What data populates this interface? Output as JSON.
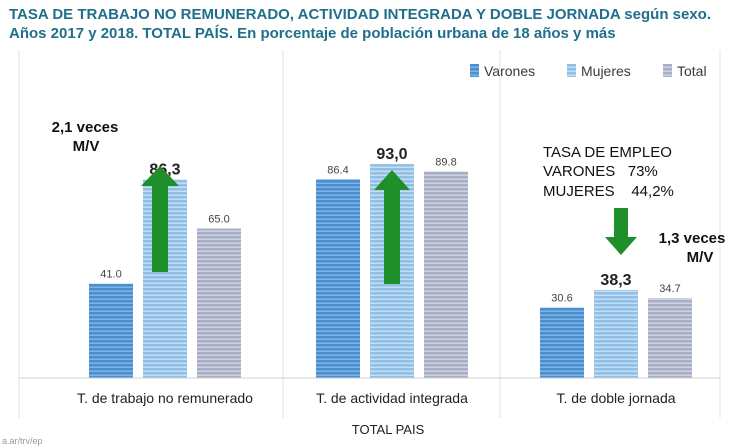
{
  "title": {
    "line1": "TASA DE TRABAJO NO REMUNERADO, ACTIVIDAD INTEGRADA Y DOBLE JORNADA según sexo.",
    "line2": "Años 2017 y 2018. TOTAL PAÍS. En porcentaje de población urbana de 18 años y más"
  },
  "colors": {
    "varones": "#4a8fd0",
    "mujeres": "#8fbfe6",
    "total": "#a7aec6",
    "arrow": "#1e8f2a",
    "title": "#1f6f8b"
  },
  "chart_data": {
    "type": "bar",
    "categories": [
      "T. de trabajo no remunerado",
      "T. de actividad integrada",
      "T. de doble jornada"
    ],
    "series": [
      {
        "name": "Varones",
        "values": [
          41.0,
          86.4,
          30.6
        ],
        "labels": [
          "41.0",
          "86.4",
          "30.6"
        ]
      },
      {
        "name": "Mujeres",
        "values": [
          86.3,
          93.0,
          38.3
        ],
        "labels": [
          "86,3",
          "93,0",
          "38,3"
        ]
      },
      {
        "name": "Total",
        "values": [
          65.0,
          89.8,
          34.7
        ],
        "labels": [
          "65.0",
          "89.8",
          "34.7"
        ]
      }
    ],
    "ylim": [
      0,
      100
    ],
    "xlabel": "TOTAL PAIS",
    "legend_position": "top-right",
    "grid": false
  },
  "annotations": {
    "ratio1_line1": "2,1 veces",
    "ratio1_line2": "M/V",
    "ratio2_line1": "1,3 veces",
    "ratio2_line2": "M/V",
    "employment_title": "TASA DE EMPLEO",
    "employment_men": "VARONES   73%",
    "employment_women": "MUJERES    44,2%"
  },
  "watermark": "a.ar/trv/ep"
}
